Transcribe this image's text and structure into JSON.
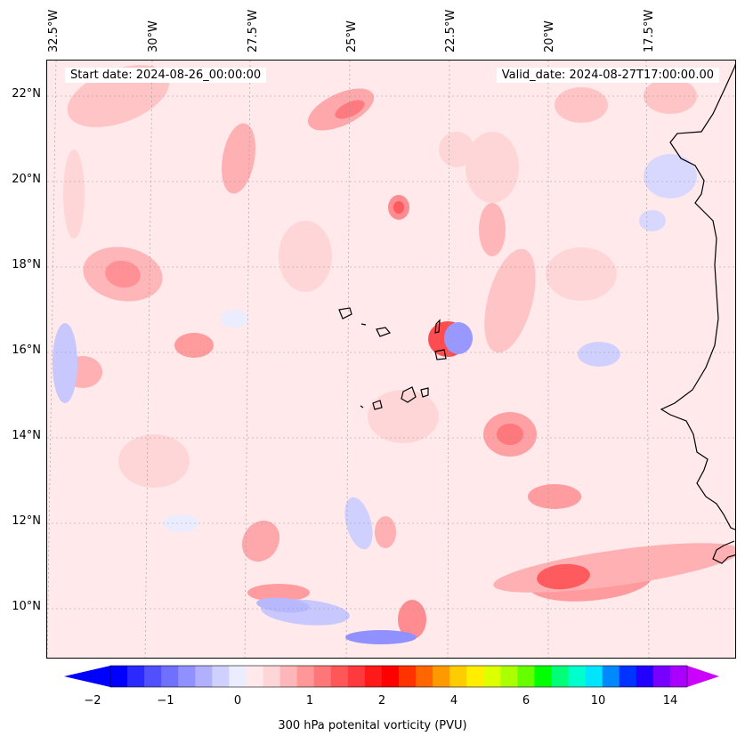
{
  "map": {
    "start_date": "Start date: 2024-08-26_00:00:00",
    "valid_date": "Valid_date: 2024-08-27T17:00:00.00",
    "lon_labels": [
      "32.5°W",
      "30°W",
      "27.5°W",
      "25°W",
      "22.5°W",
      "20°W",
      "17.5°W"
    ],
    "lat_labels": [
      "22°N",
      "20°N",
      "18°N",
      "16°N",
      "14°N",
      "12°N",
      "10°N"
    ],
    "field": "300 hPa potenital vorticity (PVU)"
  },
  "colorbar": {
    "label": "300 hPa potenital vorticity (PVU)",
    "ticks": [
      "−2",
      "−1",
      "0",
      "1",
      "2",
      "4",
      "6",
      "10",
      "14"
    ],
    "colors": [
      "#0000ff",
      "#2a2aff",
      "#5050ff",
      "#7070ff",
      "#9090ff",
      "#b0b0ff",
      "#d0d0ff",
      "#ececff",
      "#ffe9ea",
      "#ffd6d8",
      "#ffb6b8",
      "#ff9698",
      "#ff7678",
      "#ff5658",
      "#ff3a3c",
      "#ff1a1a",
      "#ff0000",
      "#ff3300",
      "#ff6600",
      "#ff9900",
      "#ffcc00",
      "#ffee00",
      "#ddff00",
      "#aaff00",
      "#66ff00",
      "#00ff00",
      "#00ff77",
      "#00ffcc",
      "#00e5ff",
      "#0088ff",
      "#0033ff",
      "#2200ff",
      "#7700ff",
      "#aa00ff"
    ],
    "extend_low_color": "#0000ff",
    "extend_high_color": "#cc00ff"
  }
}
